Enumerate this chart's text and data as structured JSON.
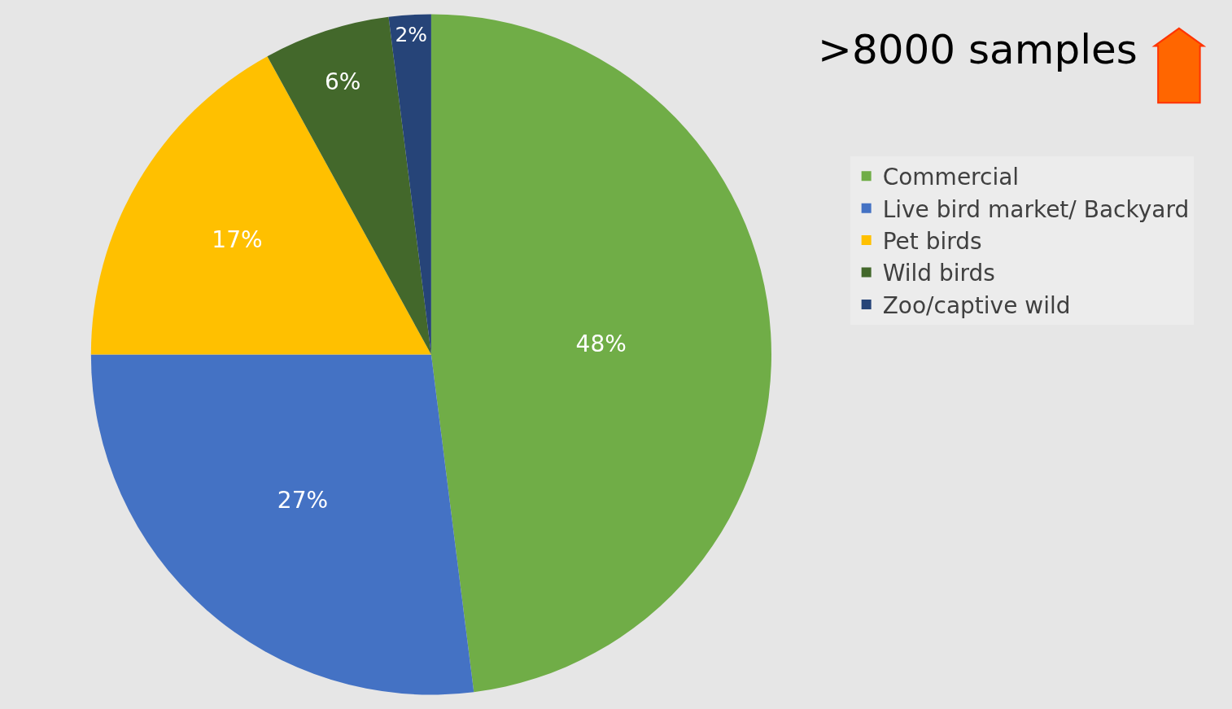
{
  "chart_data": {
    "type": "pie",
    "title": ">8000 samples",
    "categories": [
      "Commercial",
      "Live bird market/ Backyard",
      "Pet birds",
      "Wild birds",
      "Zoo/captive wild"
    ],
    "values": [
      48,
      27,
      17,
      6,
      2
    ],
    "value_labels": [
      "48%",
      "27%",
      "17%",
      "6%",
      "2%"
    ],
    "colors": [
      "#70ad47",
      "#4472c4",
      "#ffc000",
      "#43682b",
      "#264478"
    ],
    "legend": "right"
  }
}
